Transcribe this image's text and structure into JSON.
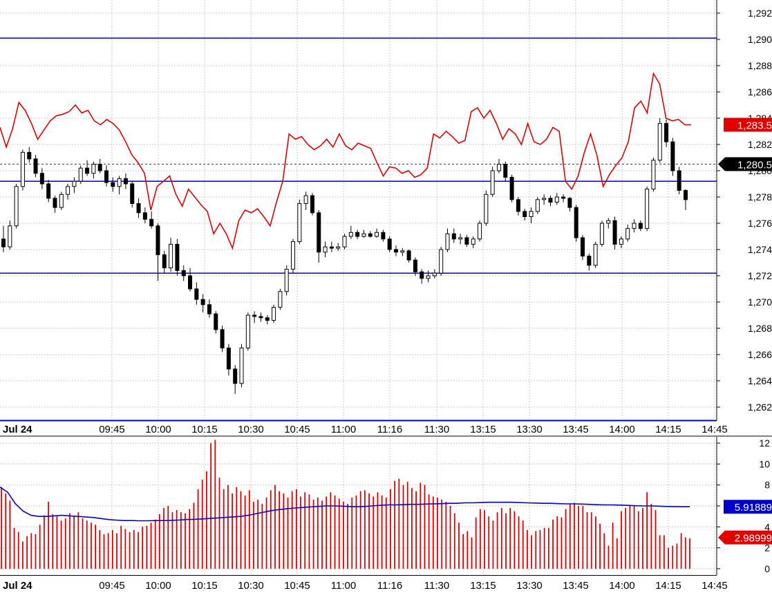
{
  "colors": {
    "background": "#ffffff",
    "grid": "#c8c8c8",
    "price_line": "#e00000",
    "level_line": "#0000cc",
    "candle_up": "#ffffff",
    "candle_down": "#000000",
    "volume_bar": "#e00000",
    "volume_avg": "#0000cc"
  },
  "date_label": "Jul 24",
  "time_labels": [
    "09:45",
    "10:00",
    "10:15",
    "10:30",
    "10:45",
    "11:00",
    "11:16",
    "11:30",
    "13:15",
    "13:30",
    "13:45",
    "14:00",
    "14:15",
    "14:45"
  ],
  "chart_data": [
    {
      "type": "candlestick",
      "title": "",
      "ylim": [
        1261,
        1293
      ],
      "y_ticks": [
        "1,262",
        "1,264",
        "1,266",
        "1,268",
        "1,270",
        "1,272",
        "1,274",
        "1,276",
        "1,278",
        "1,280",
        "1,282",
        "1,284",
        "1,286",
        "1,288",
        "1,290",
        "1,292"
      ],
      "horizontal_levels": [
        1290.1,
        1279.2,
        1272.2
      ],
      "dashed_level": 1280.5,
      "price_badges": [
        {
          "value": 1283.5,
          "label": "1,283.5",
          "color": "#e00000"
        },
        {
          "value": 1280.5,
          "label": "1,280.5",
          "color": "#000000"
        }
      ],
      "candles": [
        [
          1274.8,
          1275.8,
          1273.8,
          1274.2
        ],
        [
          1274.2,
          1276.2,
          1274.0,
          1275.8
        ],
        [
          1275.8,
          1279.0,
          1275.6,
          1278.8
        ],
        [
          1278.8,
          1281.6,
          1278.5,
          1281.4
        ],
        [
          1281.4,
          1281.8,
          1280.6,
          1280.9
        ],
        [
          1280.9,
          1281.2,
          1279.5,
          1279.8
        ],
        [
          1279.8,
          1280.2,
          1278.6,
          1279.0
        ],
        [
          1279.0,
          1279.3,
          1277.6,
          1277.9
        ],
        [
          1277.9,
          1278.1,
          1276.8,
          1277.2
        ],
        [
          1277.2,
          1278.4,
          1277.0,
          1278.2
        ],
        [
          1278.2,
          1279.0,
          1277.8,
          1278.8
        ],
        [
          1278.8,
          1279.5,
          1278.3,
          1279.2
        ],
        [
          1279.2,
          1280.4,
          1279.0,
          1280.2
        ],
        [
          1280.2,
          1280.8,
          1279.6,
          1279.8
        ],
        [
          1279.8,
          1280.7,
          1279.4,
          1280.5
        ],
        [
          1280.5,
          1280.9,
          1279.8,
          1280.0
        ],
        [
          1280.0,
          1280.4,
          1278.8,
          1279.1
        ],
        [
          1279.1,
          1279.5,
          1278.4,
          1278.8
        ],
        [
          1278.8,
          1279.6,
          1278.2,
          1279.4
        ],
        [
          1279.4,
          1279.8,
          1278.6,
          1279.0
        ],
        [
          1279.0,
          1279.2,
          1277.2,
          1277.5
        ],
        [
          1277.5,
          1277.9,
          1276.4,
          1276.8
        ],
        [
          1276.8,
          1277.2,
          1276.0,
          1276.3
        ],
        [
          1276.3,
          1276.9,
          1275.6,
          1275.8
        ],
        [
          1275.8,
          1276.0,
          1271.6,
          1273.6
        ],
        [
          1273.6,
          1273.9,
          1272.2,
          1272.6
        ],
        [
          1272.6,
          1274.9,
          1272.3,
          1274.4
        ],
        [
          1274.4,
          1274.8,
          1272.0,
          1272.4
        ],
        [
          1272.4,
          1272.8,
          1271.6,
          1272.0
        ],
        [
          1272.0,
          1272.6,
          1270.8,
          1271.0
        ],
        [
          1271.0,
          1271.5,
          1269.8,
          1270.2
        ],
        [
          1270.2,
          1270.6,
          1269.2,
          1269.8
        ],
        [
          1269.8,
          1270.2,
          1268.8,
          1269.1
        ],
        [
          1269.1,
          1269.3,
          1267.6,
          1267.9
        ],
        [
          1267.9,
          1268.2,
          1266.2,
          1266.5
        ],
        [
          1266.5,
          1266.8,
          1264.4,
          1264.9
        ],
        [
          1264.9,
          1265.2,
          1263.0,
          1263.8
        ],
        [
          1263.8,
          1266.8,
          1263.5,
          1266.5
        ],
        [
          1266.5,
          1269.2,
          1266.3,
          1269.0
        ],
        [
          1269.0,
          1269.3,
          1268.4,
          1268.9
        ],
        [
          1268.9,
          1269.2,
          1268.5,
          1268.8
        ],
        [
          1268.8,
          1269.0,
          1268.3,
          1268.6
        ],
        [
          1268.6,
          1269.8,
          1268.4,
          1269.6
        ],
        [
          1269.6,
          1271.0,
          1269.4,
          1270.8
        ],
        [
          1270.8,
          1272.8,
          1270.5,
          1272.5
        ],
        [
          1272.5,
          1274.8,
          1272.2,
          1274.6
        ],
        [
          1274.6,
          1277.8,
          1274.4,
          1277.5
        ],
        [
          1277.5,
          1278.4,
          1277.0,
          1278.1
        ],
        [
          1278.1,
          1278.3,
          1276.6,
          1276.8
        ],
        [
          1276.8,
          1277.0,
          1273.0,
          1273.8
        ],
        [
          1273.8,
          1274.6,
          1273.4,
          1274.2
        ],
        [
          1274.2,
          1274.6,
          1273.8,
          1274.1
        ],
        [
          1274.1,
          1274.5,
          1273.9,
          1274.2
        ],
        [
          1274.2,
          1275.2,
          1274.0,
          1275.0
        ],
        [
          1275.0,
          1275.8,
          1274.8,
          1275.3
        ],
        [
          1275.3,
          1275.5,
          1274.8,
          1275.0
        ],
        [
          1275.0,
          1275.5,
          1274.9,
          1275.2
        ],
        [
          1275.2,
          1275.4,
          1274.9,
          1275.0
        ],
        [
          1275.0,
          1275.6,
          1274.9,
          1275.3
        ],
        [
          1275.3,
          1275.5,
          1274.6,
          1274.8
        ],
        [
          1274.8,
          1275.0,
          1273.8,
          1274.0
        ],
        [
          1274.0,
          1274.3,
          1273.5,
          1273.8
        ],
        [
          1273.8,
          1274.1,
          1273.5,
          1273.9
        ],
        [
          1273.9,
          1274.0,
          1273.0,
          1273.2
        ],
        [
          1273.2,
          1273.4,
          1272.0,
          1272.3
        ],
        [
          1272.3,
          1272.5,
          1271.4,
          1271.8
        ],
        [
          1271.8,
          1272.4,
          1271.5,
          1272.0
        ],
        [
          1272.0,
          1272.5,
          1271.8,
          1272.2
        ],
        [
          1272.2,
          1274.2,
          1272.0,
          1274.0
        ],
        [
          1274.0,
          1275.6,
          1273.8,
          1275.2
        ],
        [
          1275.2,
          1275.6,
          1274.5,
          1274.8
        ],
        [
          1274.8,
          1275.2,
          1274.4,
          1274.9
        ],
        [
          1274.9,
          1275.1,
          1274.2,
          1274.4
        ],
        [
          1274.4,
          1275.0,
          1274.1,
          1274.8
        ],
        [
          1274.8,
          1276.2,
          1274.6,
          1276.0
        ],
        [
          1276.0,
          1278.5,
          1275.8,
          1278.2
        ],
        [
          1278.2,
          1280.3,
          1278.0,
          1280.0
        ],
        [
          1280.0,
          1280.9,
          1279.8,
          1280.5
        ],
        [
          1280.5,
          1280.7,
          1279.2,
          1279.5
        ],
        [
          1279.5,
          1279.7,
          1277.6,
          1277.8
        ],
        [
          1277.8,
          1278.0,
          1276.6,
          1276.9
        ],
        [
          1276.9,
          1277.1,
          1276.2,
          1276.5
        ],
        [
          1276.5,
          1277.2,
          1276.0,
          1276.9
        ],
        [
          1276.9,
          1278.0,
          1276.7,
          1277.8
        ],
        [
          1277.8,
          1278.2,
          1277.4,
          1277.9
        ],
        [
          1277.9,
          1278.1,
          1277.3,
          1277.6
        ],
        [
          1277.6,
          1278.3,
          1277.4,
          1278.0
        ],
        [
          1278.0,
          1278.2,
          1277.6,
          1277.9
        ],
        [
          1277.9,
          1278.0,
          1276.9,
          1277.2
        ],
        [
          1277.2,
          1277.4,
          1274.6,
          1274.9
        ],
        [
          1274.9,
          1275.1,
          1273.2,
          1273.5
        ],
        [
          1273.5,
          1273.7,
          1272.4,
          1272.8
        ],
        [
          1272.8,
          1274.6,
          1272.6,
          1274.4
        ],
        [
          1274.4,
          1276.2,
          1274.2,
          1276.0
        ],
        [
          1276.0,
          1276.4,
          1275.6,
          1276.2
        ],
        [
          1276.2,
          1276.5,
          1274.0,
          1274.4
        ],
        [
          1274.4,
          1275.0,
          1274.1,
          1274.8
        ],
        [
          1274.8,
          1275.9,
          1274.6,
          1275.6
        ],
        [
          1275.6,
          1276.3,
          1275.3,
          1276.0
        ],
        [
          1276.0,
          1276.2,
          1275.4,
          1275.6
        ],
        [
          1275.6,
          1278.8,
          1275.4,
          1278.6
        ],
        [
          1278.6,
          1281.0,
          1278.4,
          1280.8
        ],
        [
          1280.8,
          1284.0,
          1280.6,
          1283.6
        ],
        [
          1283.6,
          1283.9,
          1281.8,
          1282.2
        ],
        [
          1282.2,
          1282.5,
          1279.6,
          1280.0
        ],
        [
          1280.0,
          1280.3,
          1278.2,
          1278.5
        ],
        [
          1278.5,
          1278.6,
          1277.0,
          1277.8
        ]
      ],
      "price_line": [
        1283.3,
        1281.8,
        1283.2,
        1285.2,
        1284.6,
        1283.6,
        1282.4,
        1283.1,
        1283.8,
        1284.2,
        1284.3,
        1284.5,
        1285.0,
        1284.4,
        1284.6,
        1283.8,
        1283.5,
        1283.9,
        1283.6,
        1283.1,
        1282.2,
        1281.2,
        1280.6,
        1279.8,
        1277.0,
        1278.8,
        1279.2,
        1279.6,
        1278.2,
        1277.3,
        1278.6,
        1278.0,
        1277.4,
        1276.9,
        1275.2,
        1276.0,
        1275.2,
        1274.1,
        1276.2,
        1277.0,
        1276.8,
        1277.1,
        1276.5,
        1275.8,
        1277.6,
        1279.2,
        1282.8,
        1282.4,
        1282.6,
        1282.0,
        1281.6,
        1281.9,
        1282.4,
        1281.8,
        1282.8,
        1281.9,
        1281.6,
        1282.1,
        1281.9,
        1281.7,
        1280.6,
        1279.6,
        1280.3,
        1280.2,
        1279.8,
        1280.0,
        1279.5,
        1279.7,
        1280.2,
        1282.8,
        1282.5,
        1283.0,
        1282.6,
        1282.1,
        1282.3,
        1284.5,
        1284.8,
        1284.0,
        1284.6,
        1283.6,
        1282.4,
        1283.2,
        1282.8,
        1282.0,
        1283.6,
        1282.2,
        1282.0,
        1282.4,
        1283.3,
        1283.0,
        1279.2,
        1278.6,
        1279.6,
        1281.4,
        1282.8,
        1281.2,
        1278.8,
        1279.7,
        1280.4,
        1281.0,
        1282.2,
        1284.8,
        1285.3,
        1284.4,
        1287.4,
        1286.6,
        1284.0,
        1283.8,
        1283.9,
        1283.5,
        1283.5
      ]
    },
    {
      "type": "bar",
      "title": "",
      "ylim": [
        -0.6,
        12.6
      ],
      "y_ticks": [
        "0",
        "2",
        "4",
        "6",
        "8",
        "10",
        "12"
      ],
      "value_badges": [
        {
          "value": 5.91889,
          "label": "5.91889",
          "color": "#0000cc"
        },
        {
          "value": 2.98999,
          "label": "2.98999",
          "color": "#e00000"
        }
      ],
      "volume": [
        7.8,
        7.2,
        6.5,
        3.9,
        3.5,
        2.6,
        3.1,
        3.4,
        3.3,
        4.2,
        5.1,
        6.4,
        5.2,
        5.0,
        4.6,
        4.8,
        5.3,
        5.0,
        5.4,
        4.8,
        4.6,
        4.4,
        4.2,
        3.7,
        3.3,
        3.4,
        3.7,
        3.4,
        4.1,
        3.8,
        3.5,
        3.7,
        3.5,
        4.0,
        4.1,
        4.4,
        4.7,
        5.2,
        5.8,
        6.0,
        5.4,
        5.6,
        5.4,
        5.3,
        5.7,
        6.3,
        7.6,
        8.5,
        9.3,
        12.0,
        12.3,
        8.7,
        7.6,
        8.0,
        7.2,
        7.8,
        7.4,
        7.0,
        7.5,
        6.4,
        6.6,
        6.2,
        6.8,
        7.5,
        8.0,
        7.4,
        7.2,
        6.8,
        7.4,
        7.6,
        6.9,
        7.3,
        7.1,
        6.6,
        6.8,
        6.5,
        6.9,
        7.3,
        7.0,
        6.7,
        6.4,
        6.2,
        6.8,
        7.0,
        7.4,
        7.5,
        7.2,
        6.9,
        7.3,
        7.0,
        6.8,
        7.6,
        8.4,
        8.6,
        8.0,
        8.3,
        7.7,
        7.4,
        8.2,
        8.0,
        7.1,
        6.9,
        6.8,
        6.6,
        6.4,
        6.0,
        5.3,
        4.4,
        3.3,
        3.6,
        3.0,
        4.9,
        5.7,
        5.6,
        5.0,
        4.6,
        5.4,
        5.8,
        5.3,
        5.8,
        5.5,
        5.0,
        4.6,
        3.7,
        3.2,
        3.6,
        3.7,
        3.9,
        3.9,
        4.7,
        5.0,
        4.9,
        5.7,
        6.2,
        6.3,
        6.0,
        6.0,
        5.4,
        5.4,
        5.0,
        4.3,
        3.4,
        2.2,
        4.4,
        2.9,
        5.5,
        5.8,
        6.1,
        6.0,
        5.5,
        5.8,
        7.3,
        6.2,
        5.6,
        3.2,
        3.2,
        2.0,
        2.2,
        2.4,
        3.4,
        3.0,
        2.9
      ],
      "volume_avg": [
        7.8,
        7.3,
        6.2,
        5.5,
        5.1,
        5.0,
        5.0,
        5.05,
        5.1,
        5.05,
        5.0,
        4.95,
        4.9,
        4.8,
        4.7,
        4.65,
        4.6,
        4.6,
        4.58,
        4.58,
        4.6,
        4.6,
        4.62,
        4.65,
        4.7,
        4.72,
        4.75,
        4.8,
        4.85,
        4.9,
        4.95,
        5.0,
        5.1,
        5.25,
        5.4,
        5.55,
        5.65,
        5.72,
        5.8,
        5.85,
        5.9,
        5.95,
        6.0,
        6.0,
        5.98,
        5.95,
        5.92,
        5.95,
        6.0,
        6.05,
        6.1,
        6.1,
        6.12,
        6.15,
        6.15,
        6.18,
        6.2,
        6.22,
        6.25,
        6.25,
        6.3,
        6.3,
        6.32,
        6.35,
        6.35,
        6.35,
        6.35,
        6.32,
        6.3,
        6.28,
        6.25,
        6.25,
        6.22,
        6.2,
        6.2,
        6.18,
        6.15,
        6.12,
        6.1,
        6.1,
        6.08,
        6.05,
        6.02,
        6.0,
        6.0,
        5.98,
        5.95,
        5.93,
        5.92,
        5.92
      ]
    }
  ]
}
